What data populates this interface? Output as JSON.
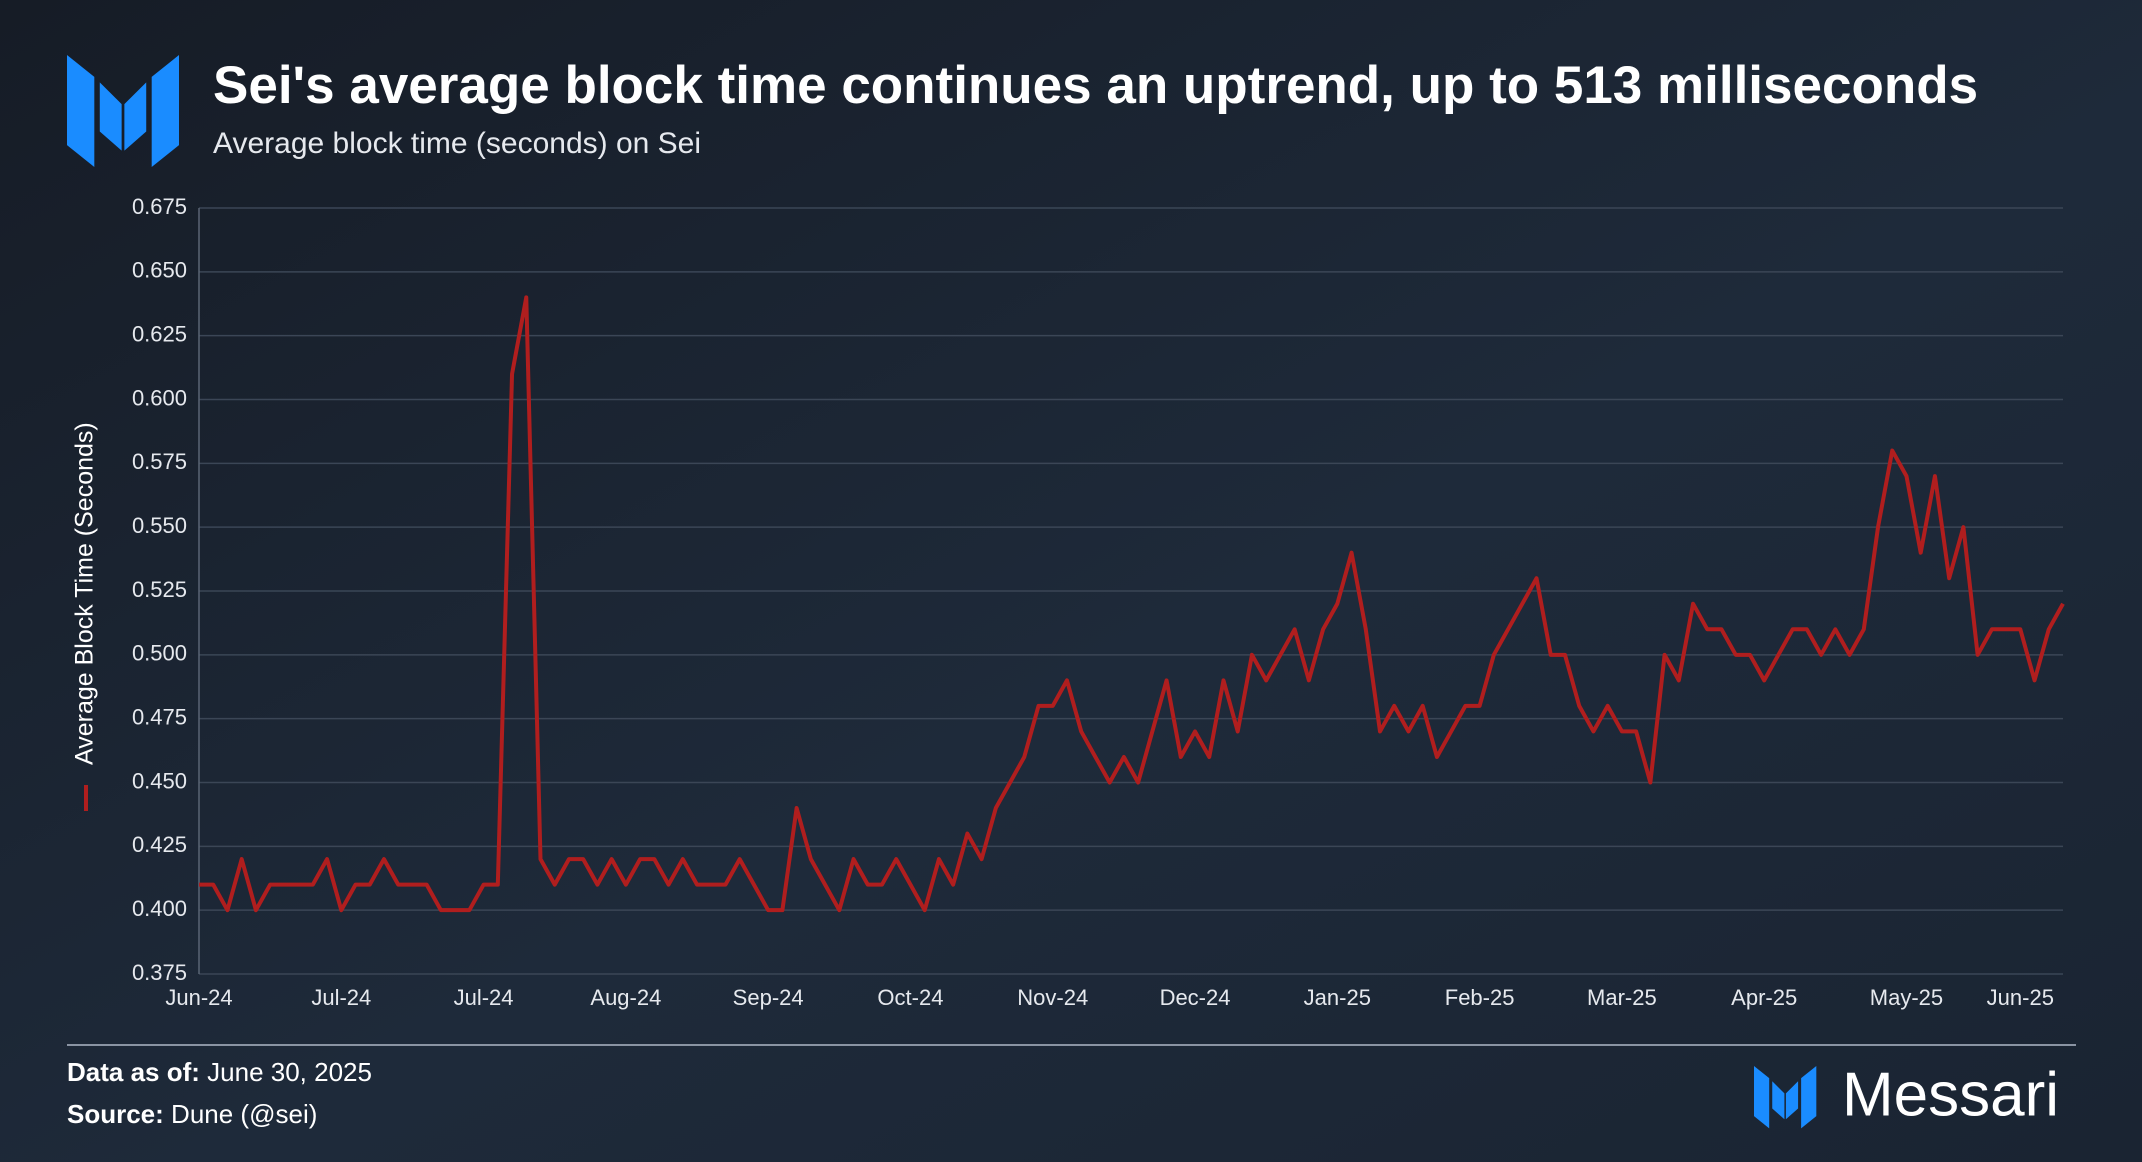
{
  "chart_data": {
    "type": "line",
    "title": "Sei's average block time continues an uptrend, up to 513 milliseconds",
    "subtitle": "Average block time (seconds) on Sei",
    "categories": [
      "Jun-24",
      null,
      null,
      null,
      null,
      null,
      null,
      null,
      null,
      null,
      "Jul-24",
      null,
      null,
      null,
      null,
      null,
      null,
      null,
      null,
      null,
      "Jul-24",
      null,
      null,
      null,
      null,
      null,
      null,
      null,
      null,
      null,
      "Aug-24",
      null,
      null,
      null,
      null,
      null,
      null,
      null,
      null,
      null,
      "Sep-24",
      null,
      null,
      null,
      null,
      null,
      null,
      null,
      null,
      null,
      "Oct-24",
      null,
      null,
      null,
      null,
      null,
      null,
      null,
      null,
      null,
      "Nov-24",
      null,
      null,
      null,
      null,
      null,
      null,
      null,
      null,
      null,
      "Dec-24",
      null,
      null,
      null,
      null,
      null,
      null,
      null,
      null,
      null,
      "Jan-25",
      null,
      null,
      null,
      null,
      null,
      null,
      null,
      null,
      null,
      "Feb-25",
      null,
      null,
      null,
      null,
      null,
      null,
      null,
      null,
      null,
      "Mar-25",
      null,
      null,
      null,
      null,
      null,
      null,
      null,
      null,
      null,
      "Apr-25",
      null,
      null,
      null,
      null,
      null,
      null,
      null,
      null,
      null,
      "May-25",
      null,
      null,
      null,
      null,
      null,
      null,
      null,
      "Jun-25",
      null,
      null,
      null
    ],
    "series": [
      {
        "name": "Average Block Time (Seconds)",
        "color": "#b01e1e",
        "values": [
          0.41,
          0.41,
          0.4,
          0.42,
          0.4,
          0.41,
          0.41,
          0.41,
          0.41,
          0.42,
          0.4,
          0.41,
          0.41,
          0.42,
          0.41,
          0.41,
          0.41,
          0.4,
          0.4,
          0.4,
          0.41,
          0.41,
          0.61,
          0.64,
          0.42,
          0.41,
          0.42,
          0.42,
          0.41,
          0.42,
          0.41,
          0.42,
          0.42,
          0.41,
          0.42,
          0.41,
          0.41,
          0.41,
          0.42,
          0.41,
          0.4,
          0.4,
          0.44,
          0.42,
          0.41,
          0.4,
          0.42,
          0.41,
          0.41,
          0.42,
          0.41,
          0.4,
          0.42,
          0.41,
          0.43,
          0.42,
          0.44,
          0.45,
          0.46,
          0.48,
          0.48,
          0.49,
          0.47,
          0.46,
          0.45,
          0.46,
          0.45,
          0.47,
          0.49,
          0.46,
          0.47,
          0.46,
          0.49,
          0.47,
          0.5,
          0.49,
          0.5,
          0.51,
          0.49,
          0.51,
          0.52,
          0.54,
          0.51,
          0.47,
          0.48,
          0.47,
          0.48,
          0.46,
          0.47,
          0.48,
          0.48,
          0.5,
          0.51,
          0.52,
          0.53,
          0.5,
          0.5,
          0.48,
          0.47,
          0.48,
          0.47,
          0.47,
          0.45,
          0.5,
          0.49,
          0.52,
          0.51,
          0.51,
          0.5,
          0.5,
          0.49,
          0.5,
          0.51,
          0.51,
          0.5,
          0.51,
          0.5,
          0.51,
          0.55,
          0.58,
          0.57,
          0.54,
          0.57,
          0.53,
          0.55,
          0.5,
          0.51,
          0.51,
          0.51,
          0.49,
          0.51,
          0.52
        ]
      }
    ],
    "ylim": [
      0.375,
      0.675
    ],
    "yticks": [
      0.375,
      {
        "value": 0.4,
        "label": "0.400"
      },
      0.425,
      {
        "value": 0.45,
        "label": "0.450"
      },
      0.475,
      {
        "value": 0.5,
        "label": "0.500"
      },
      0.525,
      {
        "value": 0.55,
        "label": "0.550"
      },
      0.575,
      {
        "value": 0.6,
        "label": "0.600"
      },
      0.625,
      {
        "value": 0.65,
        "label": "0.650"
      },
      0.675
    ],
    "grid": true
  },
  "footer": {
    "data_as_of_label": "Data as of:",
    "data_as_of": "June 30, 2025",
    "source_label": "Source:",
    "source": "Dune (@sei)"
  },
  "brand": "Messari"
}
